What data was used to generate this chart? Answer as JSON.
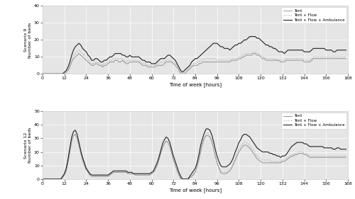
{
  "subplot1_ylabel": "Scenario 9\nNumber of beds",
  "subplot2_ylabel": "Scenario 12\nNumber of beds",
  "xlabel": "Time of week [hours]",
  "xlim": [
    0,
    168
  ],
  "ylim1": [
    0,
    40
  ],
  "ylim2": [
    0,
    50
  ],
  "xticks": [
    0,
    12,
    24,
    36,
    48,
    60,
    72,
    84,
    96,
    108,
    120,
    132,
    144,
    156,
    168
  ],
  "yticks1": [
    0,
    10,
    20,
    30,
    40
  ],
  "yticks2": [
    0,
    10,
    20,
    30,
    40,
    50
  ],
  "legend_labels": [
    "Tent",
    "Tent + Flow",
    "Tent + Flow + Ambulance"
  ],
  "bg_color": "#e5e5e5",
  "line_color_tent": "#888888",
  "line_color_flow": "#aaaaaa",
  "line_color_amb": "#222222",
  "s9_tent": [
    0,
    0,
    0,
    0,
    0,
    0,
    0,
    0,
    0,
    0,
    0,
    0,
    0,
    1,
    2,
    4,
    7,
    9,
    10,
    11,
    12,
    11,
    10,
    9,
    8,
    7,
    6,
    5,
    5,
    6,
    6,
    5,
    5,
    4,
    5,
    5,
    6,
    7,
    7,
    7,
    8,
    8,
    7,
    7,
    8,
    7,
    6,
    6,
    7,
    7,
    7,
    7,
    7,
    7,
    6,
    5,
    5,
    5,
    4,
    4,
    4,
    4,
    4,
    5,
    5,
    5,
    5,
    6,
    7,
    7,
    7,
    7,
    6,
    5,
    4,
    2,
    0,
    0,
    0,
    1,
    2,
    3,
    4,
    5,
    5,
    5,
    6,
    6,
    7,
    7,
    7,
    7,
    7,
    7,
    7,
    7,
    7,
    7,
    7,
    7,
    7,
    7,
    7,
    7,
    8,
    8,
    8,
    8,
    9,
    9,
    10,
    10,
    11,
    11,
    11,
    11,
    12,
    12,
    11,
    11,
    10,
    9,
    9,
    8,
    8,
    8,
    8,
    8,
    8,
    8,
    8,
    7,
    7,
    7,
    8,
    8,
    8,
    8,
    8,
    8,
    8,
    8,
    8,
    8,
    7,
    7,
    7,
    7,
    8,
    9,
    9,
    9,
    9,
    9,
    9,
    9,
    9,
    9,
    9,
    9,
    9,
    9,
    9,
    9,
    9,
    9,
    9,
    9
  ],
  "s9_flow": [
    0,
    0,
    0,
    0,
    0,
    0,
    0,
    0,
    0,
    0,
    0,
    0,
    0,
    1,
    3,
    5,
    8,
    11,
    12,
    13,
    14,
    13,
    12,
    11,
    10,
    9,
    7,
    6,
    6,
    7,
    7,
    6,
    6,
    5,
    6,
    6,
    7,
    8,
    8,
    9,
    9,
    9,
    9,
    9,
    9,
    8,
    7,
    8,
    8,
    8,
    8,
    8,
    8,
    8,
    7,
    6,
    6,
    6,
    5,
    5,
    5,
    5,
    5,
    6,
    6,
    7,
    7,
    7,
    8,
    8,
    8,
    8,
    7,
    6,
    5,
    3,
    1,
    0,
    1,
    2,
    3,
    4,
    5,
    6,
    6,
    7,
    7,
    8,
    8,
    9,
    9,
    9,
    9,
    9,
    9,
    9,
    8,
    8,
    8,
    8,
    8,
    8,
    8,
    8,
    9,
    9,
    9,
    9,
    10,
    10,
    11,
    11,
    12,
    12,
    12,
    12,
    13,
    13,
    12,
    12,
    11,
    10,
    10,
    9,
    9,
    9,
    9,
    9,
    9,
    8,
    8,
    8,
    8,
    8,
    9,
    9,
    9,
    9,
    9,
    9,
    9,
    9,
    9,
    9,
    8,
    8,
    8,
    8,
    9,
    10,
    10,
    10,
    10,
    10,
    10,
    10,
    10,
    10,
    10,
    10,
    10,
    10,
    10,
    10,
    10,
    10,
    10,
    10
  ],
  "s9_amb": [
    0,
    0,
    0,
    0,
    0,
    0,
    0,
    0,
    0,
    0,
    0,
    0,
    1,
    2,
    4,
    7,
    11,
    14,
    16,
    17,
    18,
    17,
    15,
    14,
    13,
    11,
    10,
    8,
    8,
    9,
    9,
    8,
    7,
    7,
    8,
    8,
    9,
    10,
    10,
    11,
    12,
    12,
    12,
    12,
    11,
    11,
    10,
    10,
    11,
    10,
    10,
    10,
    10,
    10,
    9,
    8,
    8,
    7,
    7,
    7,
    6,
    6,
    6,
    7,
    8,
    9,
    9,
    9,
    10,
    11,
    11,
    10,
    9,
    8,
    6,
    4,
    2,
    1,
    2,
    3,
    4,
    5,
    7,
    8,
    9,
    9,
    10,
    11,
    12,
    13,
    14,
    15,
    16,
    17,
    18,
    18,
    18,
    17,
    16,
    16,
    15,
    15,
    15,
    14,
    15,
    16,
    17,
    17,
    18,
    18,
    19,
    20,
    20,
    21,
    22,
    22,
    22,
    22,
    21,
    21,
    20,
    19,
    18,
    17,
    17,
    16,
    16,
    15,
    15,
    14,
    13,
    13,
    13,
    12,
    13,
    14,
    14,
    14,
    14,
    14,
    14,
    14,
    14,
    14,
    13,
    13,
    13,
    13,
    14,
    15,
    15,
    15,
    15,
    15,
    15,
    15,
    14,
    14,
    14,
    14,
    13,
    13,
    14,
    14,
    14,
    14,
    14,
    14
  ],
  "s12_tent": [
    0,
    0,
    0,
    0,
    0,
    0,
    0,
    0,
    0,
    0,
    0,
    1,
    3,
    6,
    12,
    20,
    28,
    32,
    33,
    30,
    25,
    19,
    14,
    10,
    7,
    5,
    3,
    2,
    2,
    2,
    2,
    2,
    2,
    2,
    2,
    2,
    2,
    3,
    4,
    5,
    5,
    5,
    5,
    5,
    5,
    5,
    5,
    4,
    4,
    4,
    4,
    3,
    3,
    3,
    3,
    3,
    3,
    3,
    3,
    3,
    4,
    5,
    7,
    10,
    14,
    19,
    23,
    26,
    28,
    27,
    24,
    19,
    14,
    10,
    6,
    3,
    0,
    0,
    0,
    0,
    0,
    1,
    2,
    3,
    5,
    9,
    14,
    20,
    26,
    30,
    32,
    32,
    31,
    28,
    23,
    17,
    12,
    8,
    5,
    4,
    4,
    4,
    5,
    6,
    8,
    11,
    14,
    17,
    20,
    22,
    24,
    25,
    25,
    24,
    23,
    21,
    19,
    17,
    15,
    14,
    13,
    12,
    12,
    12,
    12,
    12,
    12,
    12,
    12,
    12,
    12,
    12,
    13,
    13,
    14,
    15,
    16,
    17,
    17,
    18,
    18,
    19,
    19,
    19,
    18,
    18,
    17,
    16,
    16,
    16,
    16,
    16,
    16,
    16,
    16,
    16,
    16,
    16,
    16,
    16,
    16,
    16,
    16,
    16,
    16,
    16,
    16,
    16
  ],
  "s12_flow": [
    0,
    0,
    0,
    0,
    0,
    0,
    0,
    0,
    0,
    0,
    0,
    1,
    3,
    6,
    12,
    20,
    28,
    32,
    33,
    30,
    25,
    19,
    14,
    10,
    7,
    5,
    3,
    2,
    2,
    2,
    2,
    2,
    2,
    2,
    2,
    2,
    2,
    3,
    4,
    5,
    5,
    5,
    5,
    5,
    5,
    5,
    5,
    4,
    4,
    4,
    4,
    3,
    3,
    3,
    3,
    3,
    3,
    3,
    3,
    3,
    4,
    5,
    7,
    10,
    14,
    19,
    23,
    26,
    28,
    27,
    24,
    20,
    15,
    11,
    7,
    4,
    1,
    0,
    0,
    0,
    0,
    1,
    2,
    4,
    6,
    10,
    15,
    22,
    27,
    31,
    33,
    34,
    32,
    29,
    24,
    18,
    13,
    9,
    6,
    5,
    5,
    5,
    6,
    7,
    9,
    12,
    15,
    19,
    22,
    24,
    26,
    27,
    27,
    26,
    25,
    23,
    21,
    19,
    17,
    16,
    15,
    14,
    14,
    14,
    14,
    14,
    13,
    13,
    13,
    13,
    13,
    13,
    14,
    14,
    15,
    16,
    17,
    18,
    18,
    19,
    19,
    20,
    20,
    20,
    19,
    19,
    18,
    17,
    17,
    17,
    17,
    17,
    17,
    17,
    17,
    17,
    17,
    17,
    17,
    17,
    17,
    17,
    17,
    17,
    17,
    17,
    17,
    17
  ],
  "s12_amb": [
    0,
    0,
    0,
    0,
    0,
    0,
    0,
    0,
    0,
    0,
    0,
    2,
    4,
    8,
    15,
    23,
    31,
    35,
    36,
    33,
    27,
    21,
    16,
    12,
    8,
    6,
    4,
    3,
    3,
    3,
    3,
    3,
    3,
    3,
    3,
    3,
    3,
    4,
    5,
    6,
    6,
    6,
    6,
    6,
    6,
    6,
    6,
    5,
    5,
    5,
    4,
    4,
    4,
    4,
    4,
    4,
    4,
    4,
    4,
    4,
    5,
    6,
    9,
    12,
    16,
    21,
    26,
    29,
    31,
    30,
    27,
    22,
    17,
    13,
    9,
    5,
    2,
    0,
    0,
    0,
    0,
    2,
    4,
    6,
    8,
    12,
    18,
    25,
    30,
    34,
    37,
    37,
    36,
    33,
    28,
    22,
    17,
    13,
    10,
    9,
    9,
    9,
    10,
    11,
    13,
    16,
    20,
    23,
    27,
    29,
    32,
    33,
    33,
    32,
    31,
    29,
    27,
    25,
    23,
    22,
    21,
    20,
    20,
    20,
    20,
    19,
    19,
    18,
    18,
    17,
    17,
    16,
    17,
    17,
    18,
    20,
    22,
    24,
    25,
    26,
    27,
    27,
    27,
    27,
    26,
    26,
    25,
    24,
    24,
    24,
    24,
    24,
    24,
    24,
    24,
    23,
    23,
    23,
    23,
    23,
    22,
    22,
    23,
    23,
    22,
    22,
    22,
    22
  ]
}
